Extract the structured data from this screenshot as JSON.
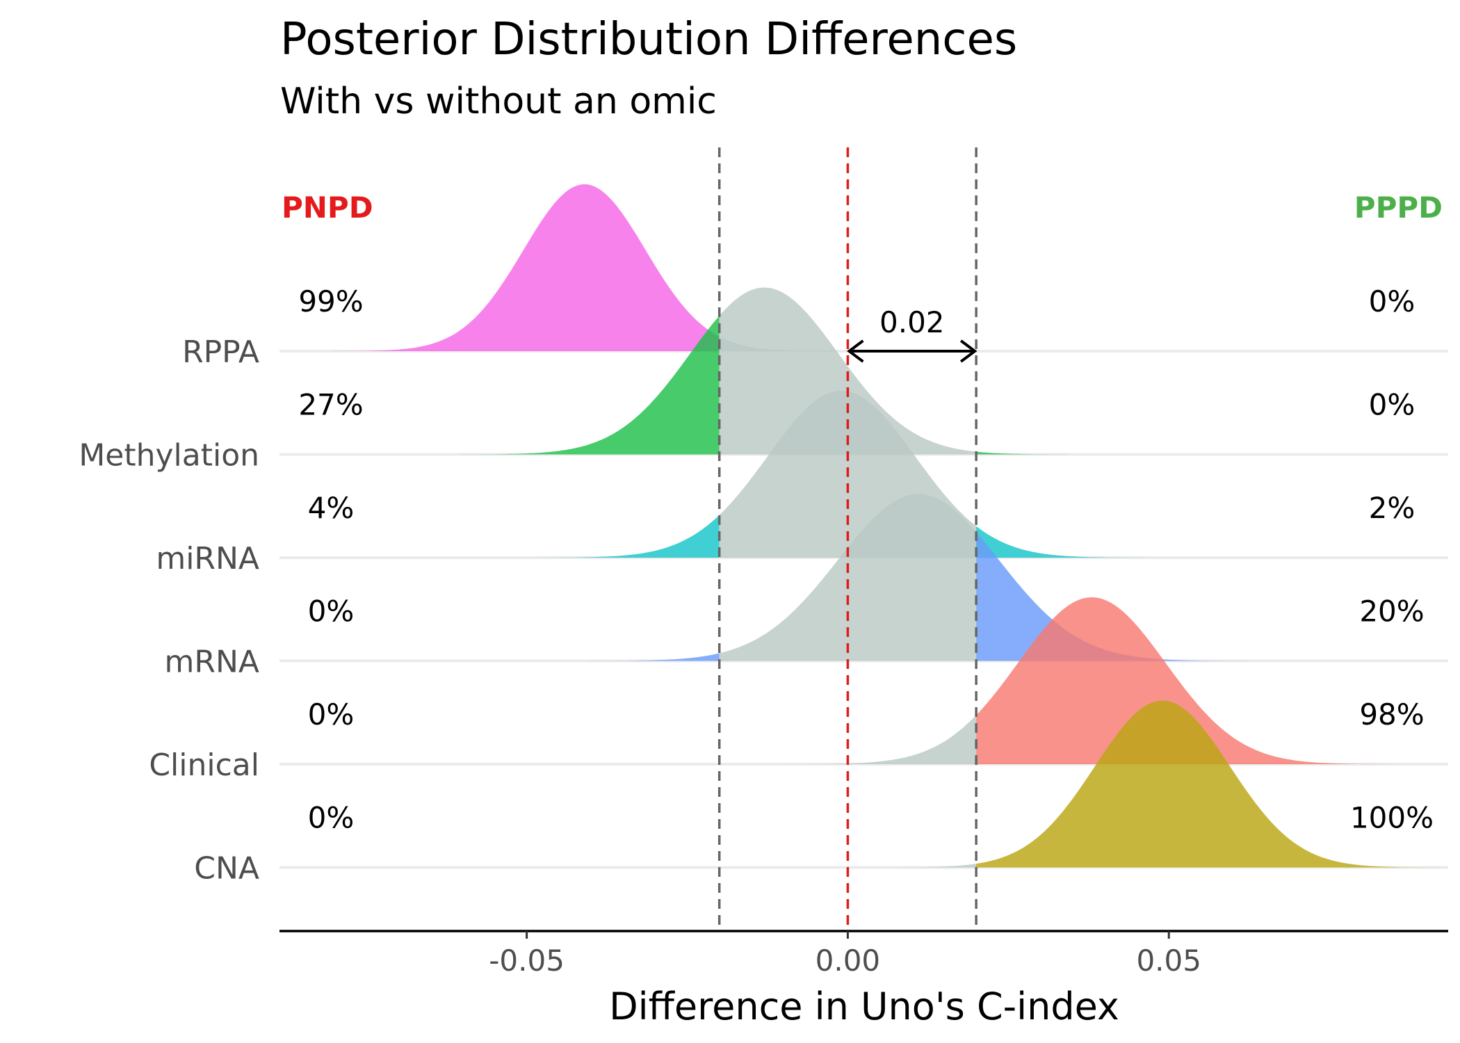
{
  "chart_data": {
    "type": "ridgeline",
    "title": "Posterior Distribution Differences",
    "subtitle": "With vs without an omic",
    "xlabel": "Difference in Uno's C-index",
    "xlim": [
      -0.0885,
      0.0935
    ],
    "x_ticks": [
      "-0.05",
      "0.00",
      "0.05"
    ],
    "x_tick_values": [
      -0.05,
      0.0,
      0.05
    ],
    "rope": {
      "lower": -0.02,
      "upper": 0.02,
      "width_label": "0.02"
    },
    "zero_line_color": "#dd1c1c",
    "rope_line_color": "#666666",
    "grey_fill": "#b9c9c4",
    "left_header": {
      "label": "PNPD",
      "color": "#e41a1c"
    },
    "right_header": {
      "label": "PPPD",
      "color": "#4daf4a"
    },
    "series": [
      {
        "name": "RPPA",
        "color": "#f566e6",
        "mean": -0.041,
        "sd": 0.0095,
        "pnpd": "99%",
        "pppd": "0%"
      },
      {
        "name": "Methylation",
        "color": "#1fbf4a",
        "mean": -0.013,
        "sd": 0.0115,
        "pnpd": "27%",
        "pppd": "0%"
      },
      {
        "name": "miRNA",
        "color": "#16c4c8",
        "mean": -0.001,
        "sd": 0.0115,
        "pnpd": "4%",
        "pppd": "2%"
      },
      {
        "name": "mRNA",
        "color": "#6b9bfa",
        "mean": 0.011,
        "sd": 0.0125,
        "pnpd": "0%",
        "pppd": "20%"
      },
      {
        "name": "Clinical",
        "color": "#f77a72",
        "mean": 0.038,
        "sd": 0.0115,
        "pnpd": "0%",
        "pppd": "98%"
      },
      {
        "name": "CNA",
        "color": "#bba614",
        "mean": 0.049,
        "sd": 0.0105,
        "pnpd": "0%",
        "pppd": "100%"
      }
    ]
  }
}
